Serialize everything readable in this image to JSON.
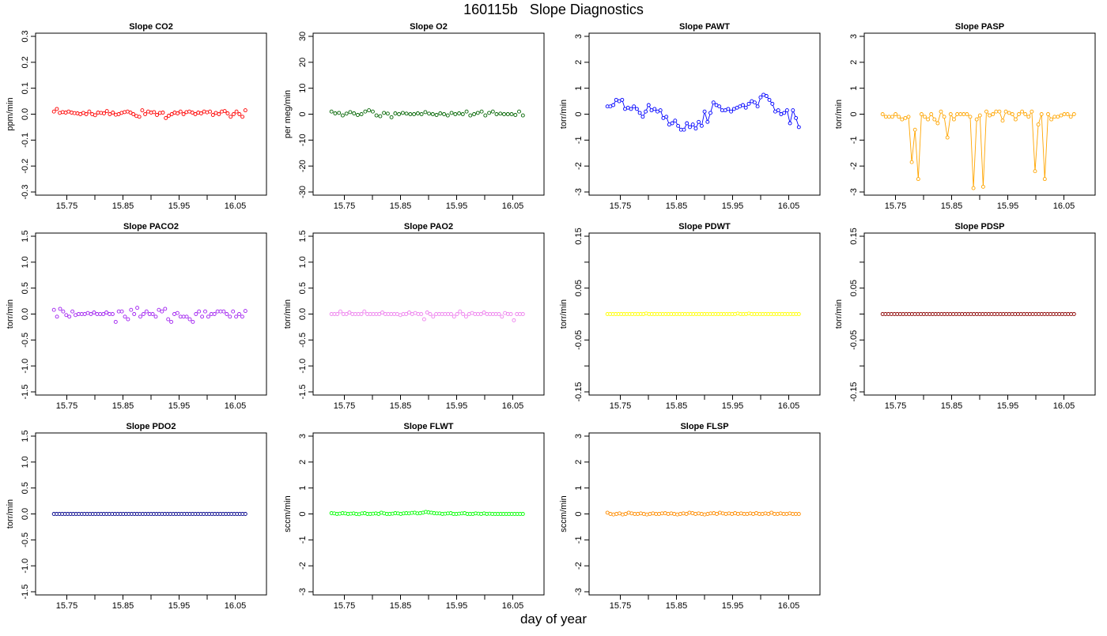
{
  "page": {
    "title": "160115b   Slope Diagnostics",
    "xlabel": "day of year"
  },
  "chart_data": [
    {
      "type": "line",
      "title": "Slope CO2",
      "ylabel": "ppm/min",
      "xlim": [
        15.7,
        16.1
      ],
      "ylim": [
        -0.3,
        0.3
      ],
      "xticks": [
        "15.75",
        "15.85",
        "15.95",
        "16.05"
      ],
      "yticks": [
        "-0.3",
        "-0.2",
        "-0.1",
        "0.0",
        "0.1",
        "0.2",
        "0.3"
      ],
      "style": "points",
      "color": "#ff0000",
      "series": [
        {
          "values": [
            0.01,
            0.02,
            0.005,
            0.008,
            0.006,
            0.01,
            0.006,
            0.004,
            0.003,
            0.0,
            0.005,
            0.0,
            0.01,
            0.0,
            -0.004,
            0.006,
            0.005,
            0.003,
            0.012,
            0.0,
            0.006,
            -0.002,
            0.0,
            0.005,
            0.008,
            0.01,
            0.006,
            0.0,
            -0.007,
            -0.01,
            0.015,
            0.0,
            0.01,
            0.006,
            0.008,
            -0.003,
            0.005,
            0.006,
            -0.015,
            -0.006,
            0.0,
            0.006,
            0.003,
            0.01,
            0.0,
            0.008,
            0.01,
            0.006,
            0.0,
            0.006,
            0.003,
            0.01,
            0.007,
            0.01,
            -0.003,
            0.005,
            0.0,
            0.01,
            0.012,
            0.003,
            -0.01,
            0.0,
            0.01,
            0.0,
            -0.01,
            0.015
          ]
        }
      ]
    },
    {
      "type": "line",
      "title": "Slope O2",
      "ylabel": "per meg/min",
      "xlim": [
        15.7,
        16.1
      ],
      "ylim": [
        -30,
        30
      ],
      "xticks": [
        "15.75",
        "15.85",
        "15.95",
        "16.05"
      ],
      "yticks": [
        "-30",
        "-20",
        "-10",
        "0",
        "10",
        "20",
        "30"
      ],
      "style": "points",
      "color": "#006400",
      "series": [
        {
          "values": [
            1.0,
            0.3,
            0.5,
            -0.5,
            0.2,
            0.8,
            0.3,
            -0.3,
            0.0,
            1.0,
            1.5,
            1.0,
            -0.5,
            -0.8,
            0.5,
            0.2,
            -1.2,
            0.3,
            0.0,
            0.5,
            0.2,
            0.0,
            0.0,
            0.3,
            0.0,
            0.8,
            0.2,
            0.0,
            -0.3,
            0.3,
            0.0,
            -0.5,
            0.5,
            0.0,
            0.3,
            0.0,
            1.0,
            -0.5,
            0.0,
            0.5,
            1.0,
            -0.5,
            0.5,
            1.0,
            0.0,
            0.2,
            0.0,
            0.0,
            0.0,
            -0.3,
            1.0,
            -0.5
          ]
        }
      ]
    },
    {
      "type": "line",
      "title": "Slope PAWT",
      "ylabel": "torr/min",
      "xlim": [
        15.7,
        16.1
      ],
      "ylim": [
        -3,
        3
      ],
      "xticks": [
        "15.75",
        "15.85",
        "15.95",
        "16.05"
      ],
      "yticks": [
        "-3",
        "-2",
        "-1",
        "0",
        "1",
        "2",
        "3"
      ],
      "style": "both",
      "color": "#0000ff",
      "series": [
        {
          "values": [
            0.3,
            0.3,
            0.35,
            0.55,
            0.5,
            0.55,
            0.2,
            0.25,
            0.2,
            0.3,
            0.2,
            0.05,
            -0.1,
            0.1,
            0.35,
            0.15,
            0.2,
            0.1,
            0.15,
            -0.15,
            -0.1,
            -0.4,
            -0.35,
            -0.25,
            -0.45,
            -0.6,
            -0.6,
            -0.35,
            -0.5,
            -0.4,
            -0.55,
            -0.3,
            -0.45,
            0.1,
            -0.3,
            0.05,
            0.45,
            0.35,
            0.3,
            0.15,
            0.15,
            0.2,
            0.1,
            0.2,
            0.25,
            0.3,
            0.35,
            0.25,
            0.4,
            0.5,
            0.45,
            0.3,
            0.65,
            0.75,
            0.7,
            0.55,
            0.4,
            0.1,
            0.15,
            0.0,
            0.05,
            0.15,
            -0.35,
            0.15,
            -0.15,
            -0.5
          ]
        }
      ]
    },
    {
      "type": "line",
      "title": "Slope PASP",
      "ylabel": "torr/min",
      "xlim": [
        15.7,
        16.1
      ],
      "ylim": [
        -3,
        3
      ],
      "xticks": [
        "15.75",
        "15.85",
        "15.95",
        "16.05"
      ],
      "yticks": [
        "-3",
        "-2",
        "-1",
        "0",
        "1",
        "2",
        "3"
      ],
      "style": "both",
      "color": "#ffa500",
      "series": [
        {
          "values": [
            0.0,
            -0.1,
            -0.1,
            -0.1,
            0.0,
            -0.1,
            -0.2,
            -0.15,
            -0.1,
            -1.85,
            -0.6,
            -2.5,
            0.0,
            -0.1,
            -0.2,
            0.0,
            -0.2,
            -0.35,
            0.1,
            -0.1,
            -0.9,
            0.0,
            -0.2,
            0.0,
            0.0,
            0.0,
            0.0,
            -0.1,
            -2.85,
            -0.2,
            -0.05,
            -2.8,
            0.1,
            -0.05,
            0.0,
            0.1,
            0.1,
            -0.25,
            0.1,
            0.05,
            0.0,
            -0.2,
            0.0,
            0.1,
            0.0,
            -0.1,
            0.1,
            -2.2,
            -0.4,
            0.0,
            -2.5,
            0.0,
            -0.2,
            -0.1,
            -0.1,
            -0.05,
            0.0,
            0.0,
            -0.1,
            0.0
          ]
        }
      ]
    },
    {
      "type": "line",
      "title": "Slope PACO2",
      "ylabel": "torr/min",
      "xlim": [
        15.7,
        16.1
      ],
      "ylim": [
        -1.5,
        1.5
      ],
      "xticks": [
        "15.75",
        "15.85",
        "15.95",
        "16.05"
      ],
      "yticks": [
        "-1.5",
        "-1.0",
        "-0.5",
        "0.0",
        "0.5",
        "1.0",
        "1.5"
      ],
      "style": "points",
      "color": "#a020f0",
      "series": [
        {
          "values": [
            0.08,
            -0.05,
            0.1,
            0.05,
            -0.02,
            -0.05,
            0.05,
            -0.02,
            0.0,
            0.0,
            0.0,
            0.02,
            0.0,
            0.03,
            0.0,
            0.0,
            0.0,
            0.03,
            0.0,
            0.0,
            -0.15,
            0.05,
            0.05,
            -0.05,
            -0.1,
            0.08,
            0.0,
            0.12,
            -0.05,
            0.0,
            0.05,
            0.0,
            0.0,
            -0.05,
            0.08,
            0.05,
            0.1,
            -0.1,
            -0.15,
            0.0,
            0.02,
            -0.05,
            -0.05,
            -0.05,
            -0.1,
            -0.15,
            0.0,
            0.05,
            -0.05,
            0.05,
            -0.05,
            0.0,
            0.0,
            0.05,
            0.05,
            0.05,
            0.0,
            -0.05,
            0.05,
            -0.05,
            0.0,
            -0.05,
            0.06
          ]
        }
      ]
    },
    {
      "type": "line",
      "title": "Slope PAO2",
      "ylabel": "torr/min",
      "xlim": [
        15.7,
        16.1
      ],
      "ylim": [
        -1.5,
        1.5
      ],
      "xticks": [
        "15.75",
        "15.85",
        "15.95",
        "16.05"
      ],
      "yticks": [
        "-1.5",
        "-1.0",
        "-0.5",
        "0.0",
        "0.5",
        "1.0",
        "1.5"
      ],
      "style": "points",
      "color": "#ee82ee",
      "series": [
        {
          "values": [
            0.0,
            0.0,
            0.0,
            0.05,
            0.0,
            0.0,
            0.03,
            0.0,
            0.0,
            0.0,
            0.0,
            0.05,
            0.0,
            0.0,
            0.0,
            0.0,
            0.0,
            0.03,
            0.0,
            0.0,
            0.0,
            0.0,
            0.0,
            -0.02,
            0.0,
            0.0,
            0.03,
            0.0,
            0.02,
            0.0,
            0.0,
            -0.1,
            0.03,
            0.0,
            -0.05,
            0.0,
            0.0,
            0.0,
            0.0,
            0.0,
            0.0,
            -0.05,
            0.0,
            0.05,
            0.0,
            -0.05,
            0.0,
            0.02,
            0.0,
            0.0,
            0.0,
            0.03,
            0.0,
            0.0,
            0.0,
            0.0,
            0.0,
            -0.05,
            0.02,
            0.0,
            0.0,
            -0.12,
            0.0,
            0.0,
            0.0
          ]
        }
      ]
    },
    {
      "type": "line",
      "title": "Slope PDWT",
      "ylabel": "torr/min",
      "xlim": [
        15.7,
        16.1
      ],
      "ylim": [
        -0.15,
        0.15
      ],
      "xticks": [
        "15.75",
        "15.85",
        "15.95",
        "16.05"
      ],
      "yticks": [
        "-0.15",
        "-0.05",
        "0.05",
        "0.15"
      ],
      "style": "points",
      "color": "#ffff00",
      "series": [
        {
          "values": [
            0.0,
            0.0,
            0.0,
            0.0,
            0.0,
            0.0,
            0.0,
            0.0,
            0.0,
            0.0,
            0.0,
            0.0,
            0.0,
            0.0,
            0.001,
            0.0,
            0.0,
            0.0,
            0.0,
            0.0,
            0.0,
            0.0,
            0.0,
            0.0,
            0.0,
            0.0,
            0.0,
            0.0,
            0.0,
            0.0,
            0.0,
            0.0,
            0.0,
            0.0,
            0.0,
            0.0,
            0.0,
            0.0,
            0.0,
            0.0,
            0.0,
            0.0,
            0.0,
            0.0,
            0.0,
            0.0,
            0.0,
            0.001,
            0.0,
            0.0,
            0.0,
            0.001,
            0.0,
            0.0,
            0.0,
            0.0,
            0.0,
            0.0,
            0.0,
            0.0,
            0.0,
            0.0,
            0.0,
            0.0,
            0.0,
            0.0,
            0.0,
            0.0,
            0.0,
            0.0
          ]
        }
      ]
    },
    {
      "type": "line",
      "title": "Slope PDSP",
      "ylabel": "torr/min",
      "xlim": [
        15.7,
        16.1
      ],
      "ylim": [
        -0.15,
        0.15
      ],
      "xticks": [
        "15.75",
        "15.85",
        "15.95",
        "16.05"
      ],
      "yticks": [
        "-0.15",
        "-0.05",
        "0.05",
        "0.15"
      ],
      "style": "points",
      "color": "#8b0000",
      "series": [
        {
          "values": [
            0.0,
            0.0,
            0.0,
            0.0,
            0.0,
            0.0,
            0.0,
            0.0,
            0.0,
            0.0,
            0.0,
            0.0,
            0.0,
            0.0,
            0.0,
            0.0,
            0.0,
            0.0,
            0.0,
            0.0,
            0.0,
            0.0,
            0.0,
            0.0,
            0.0,
            0.0,
            0.0,
            0.0,
            0.0,
            0.0,
            0.0,
            0.0,
            0.0,
            0.0,
            0.0,
            0.0,
            0.0,
            0.0,
            0.0,
            0.0,
            0.0,
            0.0,
            0.0,
            0.0,
            0.0,
            0.0,
            0.0,
            0.0,
            0.0,
            0.0,
            0.0,
            0.0,
            0.0,
            0.0,
            0.0,
            0.0,
            0.0,
            0.0,
            0.0,
            0.0,
            0.0,
            0.0,
            0.0,
            0.0,
            0.0,
            0.0
          ]
        }
      ]
    },
    {
      "type": "line",
      "title": "Slope PDO2",
      "ylabel": "torr/min",
      "xlim": [
        15.7,
        16.1
      ],
      "ylim": [
        -1.5,
        1.5
      ],
      "xticks": [
        "15.75",
        "15.85",
        "15.95",
        "16.05"
      ],
      "yticks": [
        "-1.5",
        "-1.0",
        "-0.5",
        "0.0",
        "0.5",
        "1.0",
        "1.5"
      ],
      "style": "points",
      "color": "#00008b",
      "series": [
        {
          "values": [
            0.0,
            0.0,
            0.0,
            0.0,
            0.0,
            0.0,
            0.0,
            0.0,
            0.0,
            0.0,
            0.0,
            0.0,
            0.0,
            0.0,
            0.0,
            0.0,
            0.0,
            0.0,
            0.0,
            0.0,
            0.0,
            0.0,
            0.0,
            0.0,
            0.0,
            0.0,
            0.0,
            0.0,
            0.0,
            0.0,
            0.0,
            0.0,
            0.0,
            0.0,
            0.0,
            0.0,
            0.0,
            0.0,
            0.0,
            0.0,
            0.0,
            0.0,
            0.0,
            0.0,
            0.0,
            0.0,
            0.0,
            0.0,
            0.0,
            0.0,
            0.0,
            0.0,
            0.0,
            0.0,
            0.0,
            0.0,
            0.0,
            0.0,
            0.0,
            0.0,
            0.0,
            0.0,
            0.0,
            0.0,
            0.0,
            0.0,
            0.0,
            0.0,
            0.0,
            0.0
          ]
        }
      ]
    },
    {
      "type": "line",
      "title": "Slope FLWT",
      "ylabel": "sccm/min",
      "xlim": [
        15.7,
        16.1
      ],
      "ylim": [
        -3,
        3
      ],
      "xticks": [
        "15.75",
        "15.85",
        "15.95",
        "16.05"
      ],
      "yticks": [
        "-3",
        "-2",
        "-1",
        "0",
        "1",
        "2",
        "3"
      ],
      "style": "points",
      "color": "#00ff00",
      "series": [
        {
          "values": [
            0.03,
            0.02,
            0.0,
            0.01,
            0.03,
            0.02,
            0.0,
            0.01,
            0.02,
            0.0,
            -0.01,
            0.02,
            0.03,
            0.0,
            0.0,
            0.01,
            0.02,
            0.0,
            0.05,
            0.02,
            0.0,
            0.0,
            0.01,
            0.03,
            0.02,
            0.0,
            0.02,
            0.03,
            0.02,
            0.04,
            0.05,
            0.02,
            0.03,
            0.05,
            0.08,
            0.06,
            0.05,
            0.03,
            0.02,
            0.02,
            0.0,
            0.01,
            0.02,
            0.03,
            0.0,
            0.0,
            0.01,
            0.02,
            0.03,
            0.0,
            0.0,
            0.0,
            0.02,
            0.01,
            0.0,
            0.02,
            0.0,
            0.01,
            0.0,
            0.0,
            0.0,
            0.0,
            0.0,
            0.0,
            0.0,
            0.0,
            0.0,
            0.0,
            0.0,
            0.0
          ]
        }
      ]
    },
    {
      "type": "line",
      "title": "Slope FLSP",
      "ylabel": "sccm/min",
      "xlim": [
        15.7,
        16.1
      ],
      "ylim": [
        -3,
        3
      ],
      "xticks": [
        "15.75",
        "15.85",
        "15.95",
        "16.05"
      ],
      "yticks": [
        "-3",
        "-2",
        "-1",
        "0",
        "1",
        "2",
        "3"
      ],
      "style": "points",
      "color": "#ff8c00",
      "series": [
        {
          "values": [
            0.05,
            0.0,
            -0.02,
            0.0,
            0.02,
            -0.02,
            0.0,
            0.05,
            0.02,
            0.0,
            0.0,
            0.02,
            0.0,
            -0.02,
            0.0,
            0.02,
            0.0,
            0.0,
            0.02,
            0.03,
            0.0,
            0.02,
            0.0,
            -0.02,
            0.0,
            0.02,
            0.0,
            0.05,
            0.03,
            0.0,
            0.02,
            0.0,
            -0.02,
            0.0,
            0.02,
            0.03,
            0.0,
            0.05,
            0.02,
            0.0,
            0.02,
            0.0,
            0.03,
            0.0,
            0.02,
            0.0,
            0.0,
            0.02,
            0.0,
            0.03,
            0.0,
            0.0,
            0.02,
            0.0,
            0.05,
            0.0,
            0.0,
            0.02,
            0.0,
            0.0,
            0.02,
            0.0,
            0.0,
            0.0
          ]
        }
      ]
    }
  ]
}
